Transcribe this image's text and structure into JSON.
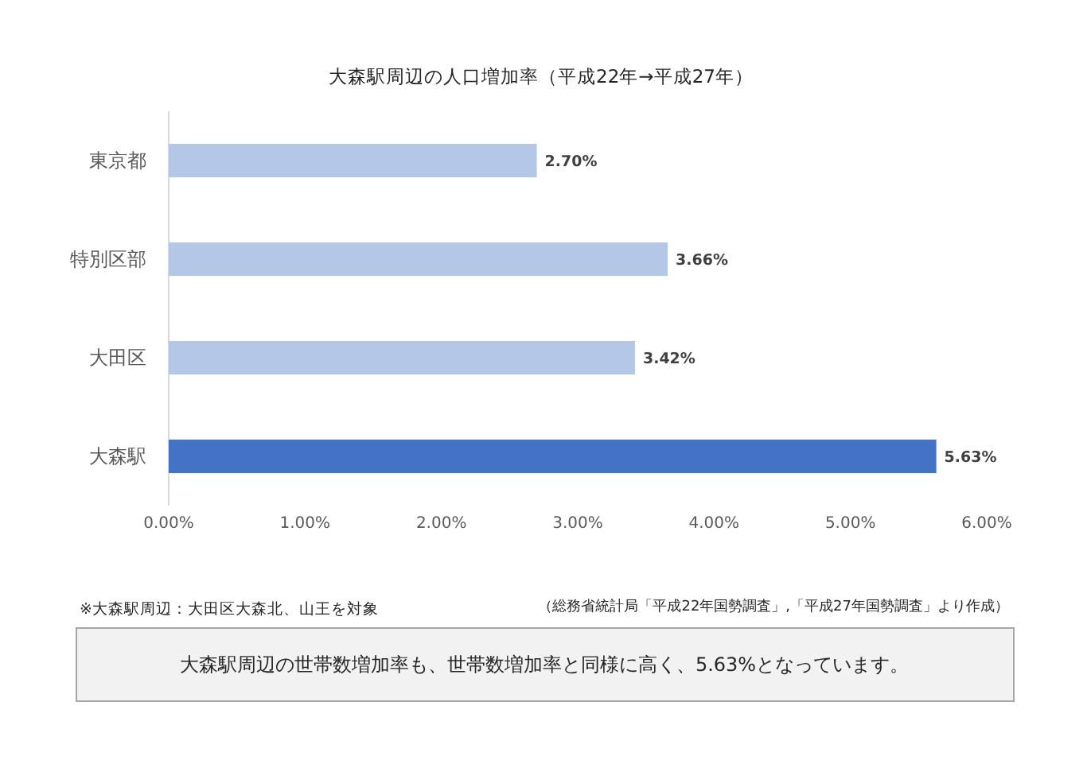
{
  "chart_data": {
    "type": "bar",
    "orientation": "horizontal",
    "title": "大森駅周辺の人口増加率（平成22年→平成27年）",
    "categories": [
      "東京都",
      "特別区部",
      "大田区",
      "大森駅"
    ],
    "values": [
      2.7,
      3.66,
      3.42,
      5.63
    ],
    "colors": [
      "#b4c7e7",
      "#b4c7e7",
      "#b4c7e7",
      "#4472c4"
    ],
    "value_labels": [
      "2.70%",
      "3.66%",
      "3.42%",
      "5.63%"
    ],
    "xlim": [
      0,
      6
    ],
    "xticks": [
      {
        "value": 0,
        "label": "0.00%"
      },
      {
        "value": 1,
        "label": "1.00%"
      },
      {
        "value": 2,
        "label": "2.00%"
      },
      {
        "value": 3,
        "label": "3.00%"
      },
      {
        "value": 4,
        "label": "4.00%"
      },
      {
        "value": 5,
        "label": "5.00%"
      },
      {
        "value": 6,
        "label": "6.00%"
      }
    ],
    "annotations": [
      "※大森駅周辺：大田区大森北、山王を対象",
      "（総務省統計局「平成22年国勢調査」,「平成27年国勢調査」より作成）",
      "大森駅周辺の世帯数増加率も、世帯数増加率と同様に高く、5.63%となっています。"
    ]
  }
}
